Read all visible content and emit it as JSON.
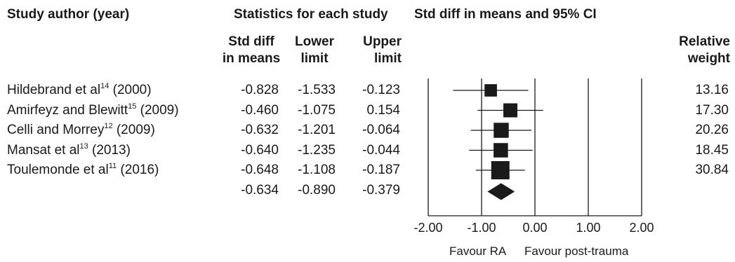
{
  "headers": {
    "study": "Study author (year)",
    "statistics": "Statistics for each study",
    "ci": "Std diff in means and 95% CI",
    "col_smd": [
      "Std diff",
      "in means"
    ],
    "col_lower": [
      "Lower",
      "limit"
    ],
    "col_upper": [
      "Upper",
      "limit"
    ],
    "col_weight": [
      "Relative",
      "weight"
    ]
  },
  "chart_data": {
    "type": "forest",
    "xlim": [
      -2.0,
      2.0
    ],
    "xticks": [
      "-2.00",
      "-1.00",
      "0.00",
      "1.00",
      "2.00"
    ],
    "favour_left": "Favour RA",
    "favour_right": "Favour post-trauma",
    "studies": [
      {
        "name": "Hildebrand et al",
        "ref": "14",
        "year": "(2000)",
        "smd": -0.828,
        "lower": -1.533,
        "upper": -0.123,
        "smd_text": "-0.828",
        "lower_text": "-1.533",
        "upper_text": "-0.123",
        "weight": 13.16,
        "weight_text": "13.16"
      },
      {
        "name": "Amirfeyz and Blewitt",
        "ref": "15",
        "year": "(2009)",
        "smd": -0.46,
        "lower": -1.075,
        "upper": 0.154,
        "smd_text": "-0.460",
        "lower_text": "-1.075",
        "upper_text": "0.154",
        "weight": 17.3,
        "weight_text": "17.30"
      },
      {
        "name": "Celli and Morrey",
        "ref": "12",
        "year": "(2009)",
        "smd": -0.632,
        "lower": -1.201,
        "upper": -0.064,
        "smd_text": "-0.632",
        "lower_text": "-1.201",
        "upper_text": "-0.064",
        "weight": 20.26,
        "weight_text": "20.26"
      },
      {
        "name": "Mansat et al",
        "ref": "13",
        "year": "(2013)",
        "smd": -0.64,
        "lower": -1.235,
        "upper": -0.044,
        "smd_text": "-0.640",
        "lower_text": "-1.235",
        "upper_text": "-0.044",
        "weight": 18.45,
        "weight_text": "18.45"
      },
      {
        "name": "Toulemonde et al",
        "ref": "11",
        "year": "(2016)",
        "smd": -0.648,
        "lower": -1.108,
        "upper": -0.187,
        "smd_text": "-0.648",
        "lower_text": "-1.108",
        "upper_text": "-0.187",
        "weight": 30.84,
        "weight_text": "30.84"
      }
    ],
    "summary": {
      "smd": -0.634,
      "lower": -0.89,
      "upper": -0.379,
      "smd_text": "-0.634",
      "lower_text": "-0.890",
      "upper_text": "-0.379"
    }
  }
}
